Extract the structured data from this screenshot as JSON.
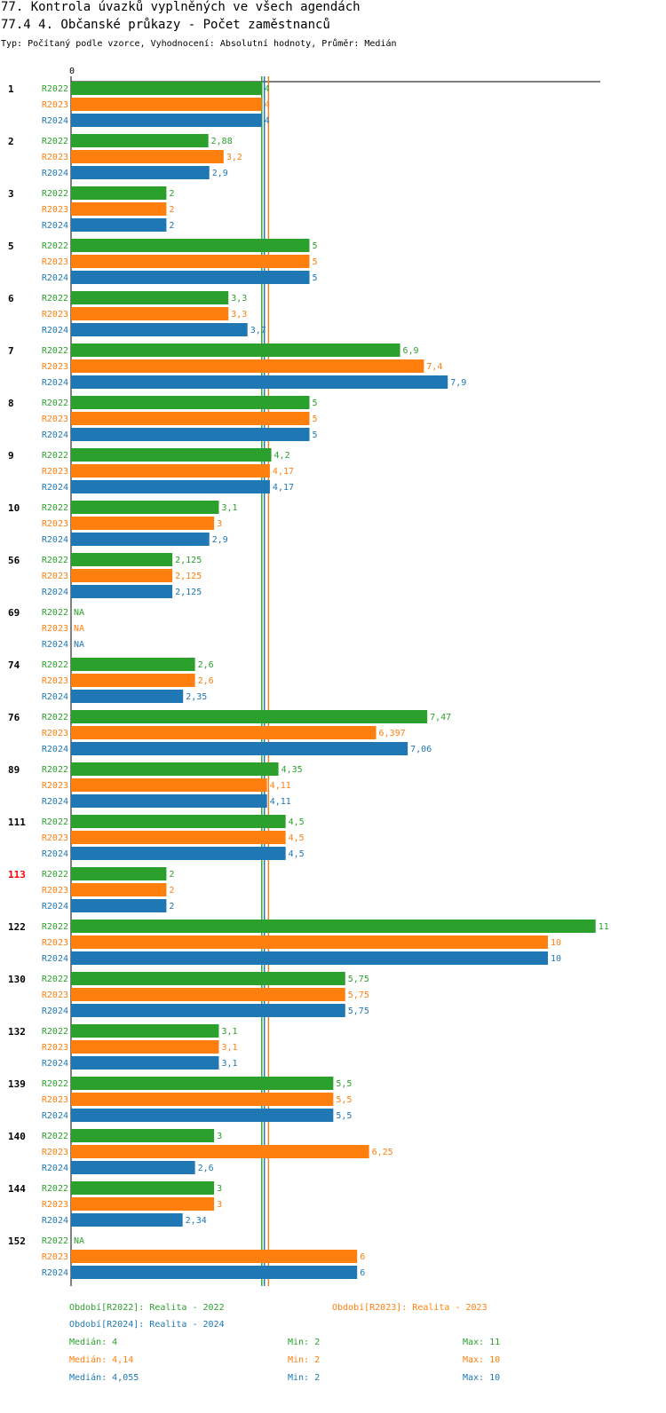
{
  "chart_data": {
    "type": "bar",
    "orientation": "horizontal",
    "title": "77. Kontrola úvazků vyplněných ve všech agendách",
    "subtitle": "77.4 4. Občanské průkazy - Počet zaměstnanců",
    "meta": "Typ: Počítaný podle vzorce, Vyhodnocení: Absolutní hodnoty, Průměr: Medián",
    "axis_zero_label": "0",
    "xlim": [
      0,
      11
    ],
    "missing_label": "NA",
    "colors": {
      "R2022": "#2ca02c",
      "R2023": "#ff7f0e",
      "R2024": "#1f77b4",
      "highlight": "#ff0000"
    },
    "series": [
      {
        "name": "R2022",
        "values": [
          4,
          2.88,
          2,
          5,
          3.3,
          6.9,
          5,
          4.2,
          3.1,
          2.125,
          null,
          2.6,
          7.47,
          4.35,
          4.5,
          2,
          11,
          5.75,
          3.1,
          5.5,
          3,
          3,
          null
        ],
        "labels": [
          "4",
          "2,88",
          "2",
          "5",
          "3,3",
          "6,9",
          "5",
          "4,2",
          "3,1",
          "2,125",
          "NA",
          "2,6",
          "7,47",
          "4,35",
          "4,5",
          "2",
          "11",
          "5,75",
          "3,1",
          "5,5",
          "3",
          "3",
          "NA"
        ]
      },
      {
        "name": "R2023",
        "values": [
          4,
          3.2,
          2,
          5,
          3.3,
          7.4,
          5,
          4.17,
          3,
          2.125,
          null,
          2.6,
          6.397,
          4.11,
          4.5,
          2,
          10,
          5.75,
          3.1,
          5.5,
          6.25,
          3,
          6
        ],
        "labels": [
          "4",
          "3,2",
          "2",
          "5",
          "3,3",
          "7,4",
          "5",
          "4,17",
          "3",
          "2,125",
          "NA",
          "2,6",
          "6,397",
          "4,11",
          "4,5",
          "2",
          "10",
          "5,75",
          "3,1",
          "5,5",
          "6,25",
          "3",
          "6"
        ]
      },
      {
        "name": "R2024",
        "values": [
          4,
          2.9,
          2,
          5,
          3.7,
          7.9,
          5,
          4.17,
          2.9,
          2.125,
          null,
          2.35,
          7.06,
          4.11,
          4.5,
          2,
          10,
          5.75,
          3.1,
          5.5,
          2.6,
          2.34,
          6
        ],
        "labels": [
          "4",
          "2,9",
          "2",
          "5",
          "3,7",
          "7,9",
          "5",
          "4,17",
          "2,9",
          "2,125",
          "NA",
          "2,35",
          "7,06",
          "4,11",
          "4,5",
          "2",
          "10",
          "5,75",
          "3,1",
          "5,5",
          "2,6",
          "2,34",
          "6"
        ]
      }
    ],
    "categories": [
      "1",
      "2",
      "3",
      "5",
      "6",
      "7",
      "8",
      "9",
      "10",
      "56",
      "69",
      "74",
      "76",
      "89",
      "111",
      "113",
      "122",
      "130",
      "132",
      "139",
      "140",
      "144",
      "152"
    ],
    "highlighted_category": "113",
    "median_lines": [
      {
        "series": "R2022",
        "value": 4
      },
      {
        "series": "R2023",
        "value": 4.14
      },
      {
        "series": "R2024",
        "value": 4.055
      }
    ],
    "legend": [
      {
        "series": "R2022",
        "text": "Období[R2022]: Realita - 2022"
      },
      {
        "series": "R2023",
        "text": "Období[R2023]: Realita - 2023"
      },
      {
        "series": "R2024",
        "text": "Období[R2024]: Realita - 2024"
      }
    ],
    "stats": [
      {
        "series": "R2022",
        "median": "Medián: 4",
        "min": "Min: 2",
        "max": "Max: 11"
      },
      {
        "series": "R2023",
        "median": "Medián: 4,14",
        "min": "Min: 2",
        "max": "Max: 10"
      },
      {
        "series": "R2024",
        "median": "Medián: 4,055",
        "min": "Min: 2",
        "max": "Max: 10"
      }
    ]
  }
}
